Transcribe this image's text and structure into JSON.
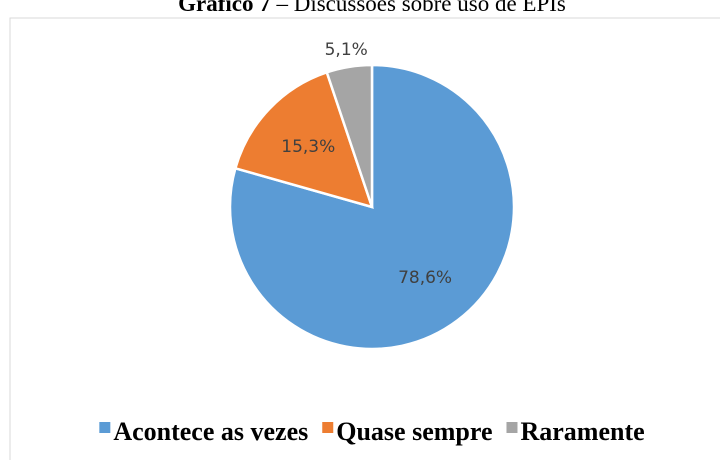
{
  "chart_data": {
    "type": "pie",
    "title": "Gráfico 7",
    "subtitle": "– Discussões sobre uso de EPIs",
    "categories": [
      "Acontece as vezes",
      "Quase sempre",
      "Raramente"
    ],
    "values": [
      78.6,
      15.3,
      5.1
    ],
    "value_labels": [
      "78,6%",
      "15,3%",
      "5,1%"
    ],
    "colors": [
      "#5b9bd5",
      "#ed7d31",
      "#a5a5a5"
    ],
    "legend": "bottom"
  }
}
